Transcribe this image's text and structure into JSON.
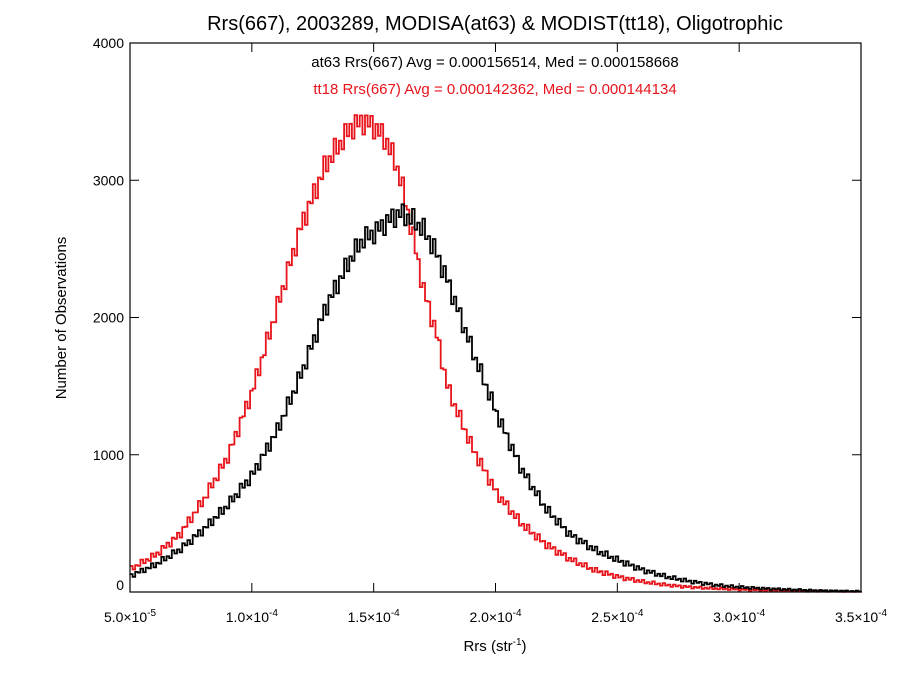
{
  "chart_data": {
    "type": "line",
    "title": "Rrs(667), 2003289, MODISA(at63) & MODIST(tt18), Oligotrophic",
    "xlabel": {
      "text": "Rrs (str",
      "sup": "-1",
      "suffix": ")"
    },
    "ylabel": "Number of Observations",
    "xlim": [
      5e-05,
      0.00035
    ],
    "ylim": [
      0,
      4000
    ],
    "grid": false,
    "plot_style": "histogram-step",
    "x_ticks": [
      {
        "value": 5e-05,
        "mant": "5.0×10",
        "exp": "-5"
      },
      {
        "value": 0.0001,
        "mant": "1.0×10",
        "exp": "-4"
      },
      {
        "value": 0.00015,
        "mant": "1.5×10",
        "exp": "-4"
      },
      {
        "value": 0.0002,
        "mant": "2.0×10",
        "exp": "-4"
      },
      {
        "value": 0.00025,
        "mant": "2.5×10",
        "exp": "-4"
      },
      {
        "value": 0.0003,
        "mant": "3.0×10",
        "exp": "-4"
      },
      {
        "value": 0.00035,
        "mant": "3.5×10",
        "exp": "-4"
      }
    ],
    "y_ticks": [
      {
        "value": 0,
        "label": "0"
      },
      {
        "value": 1000,
        "label": "1000"
      },
      {
        "value": 2000,
        "label": "2000"
      },
      {
        "value": 3000,
        "label": "3000"
      },
      {
        "value": 4000,
        "label": "4000"
      }
    ],
    "annotations": [
      {
        "text": "at63 Rrs(667) Avg = 0.000156514, Med = 0.000158668",
        "color": "#000000"
      },
      {
        "text": "tt18 Rrs(667) Avg = 0.000142362, Med = 0.000144134",
        "color": "#e8141c"
      }
    ],
    "series": [
      {
        "color": "#000000",
        "x": [
          5e-05,
          6e-05,
          7e-05,
          8e-05,
          9e-05,
          0.0001,
          0.00011,
          0.00012,
          0.00013,
          0.00014,
          0.000145,
          0.00015,
          0.000155,
          0.00016,
          0.000165,
          0.00017,
          0.000175,
          0.00018,
          0.00019,
          0.0002,
          0.00021,
          0.00022,
          0.00023,
          0.00024,
          0.00025,
          0.00026,
          0.00027,
          0.00028,
          0.00029,
          0.0003,
          0.00031,
          0.00032,
          0.00033,
          0.00034,
          0.00035
        ],
        "y": [
          120,
          200,
          310,
          460,
          640,
          860,
          1180,
          1600,
          2080,
          2430,
          2570,
          2620,
          2700,
          2760,
          2720,
          2640,
          2480,
          2260,
          1760,
          1300,
          900,
          610,
          420,
          310,
          230,
          160,
          110,
          75,
          50,
          35,
          25,
          18,
          12,
          8,
          5
        ]
      },
      {
        "color": "#e8141c",
        "x": [
          5e-05,
          6e-05,
          7e-05,
          8e-05,
          9e-05,
          0.0001,
          0.00011,
          0.00012,
          0.00013,
          0.00014,
          0.000145,
          0.00015,
          0.000155,
          0.00016,
          0.000165,
          0.00017,
          0.000175,
          0.00018,
          0.00019,
          0.0002,
          0.00021,
          0.00022,
          0.00023,
          0.00024,
          0.00025,
          0.00026,
          0.00027,
          0.00028,
          0.00029,
          0.0003,
          0.00031,
          0.00032,
          0.00033,
          0.00034,
          0.00035
        ],
        "y": [
          170,
          270,
          420,
          680,
          1000,
          1480,
          2080,
          2680,
          3120,
          3380,
          3430,
          3390,
          3280,
          3050,
          2650,
          2200,
          1900,
          1480,
          1050,
          720,
          500,
          350,
          240,
          160,
          110,
          75,
          50,
          35,
          25,
          18,
          12,
          8,
          6,
          4,
          3
        ]
      }
    ]
  }
}
